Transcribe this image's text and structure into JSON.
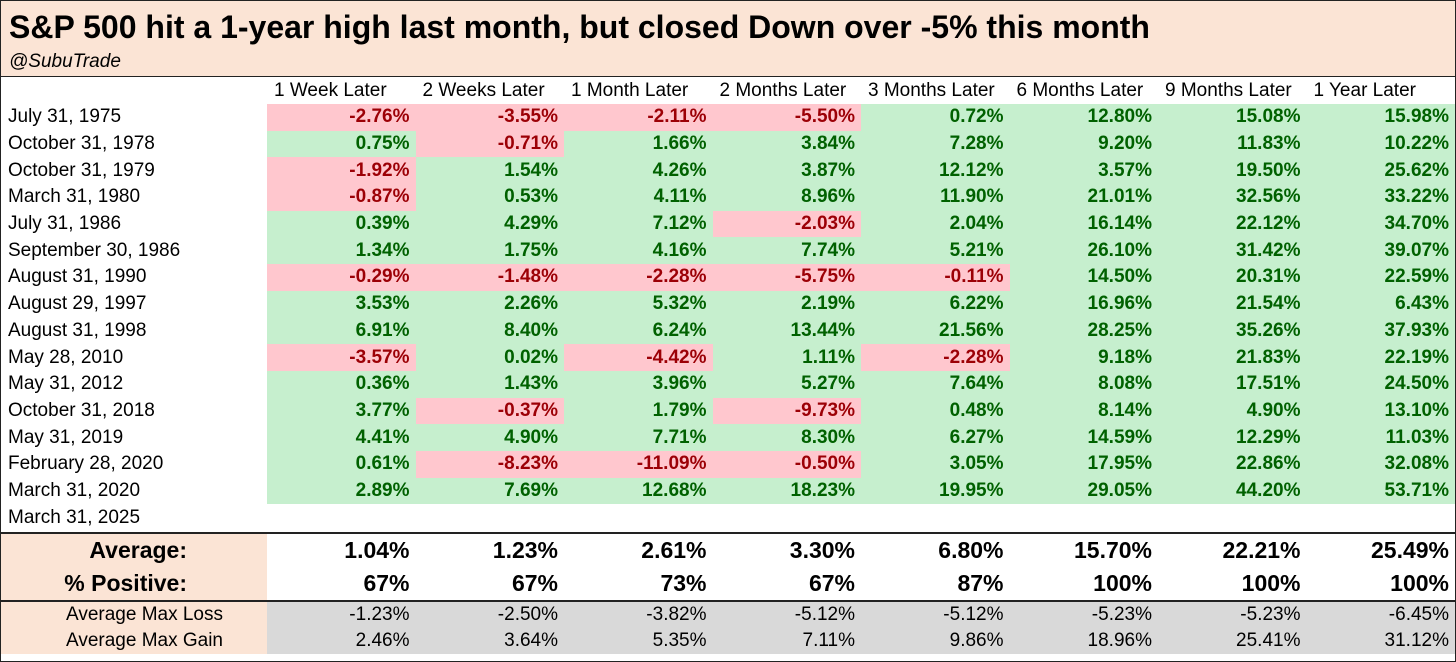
{
  "chart_data": {
    "type": "table",
    "title": "S&P 500 hit a 1-year high last month, but closed Down over -5% this month",
    "subtitle": "@SubuTrade",
    "columns": [
      "1 Week Later",
      "2 Weeks Later",
      "1 Month Later",
      "2 Months Later",
      "3 Months Later",
      "6 Months Later",
      "9 Months Later",
      "1 Year Later"
    ],
    "rows": [
      {
        "date": "July 31, 1975",
        "values": [
          "-2.76%",
          "-3.55%",
          "-2.11%",
          "-5.50%",
          "0.72%",
          "12.80%",
          "15.08%",
          "15.98%"
        ]
      },
      {
        "date": "October 31, 1978",
        "values": [
          "0.75%",
          "-0.71%",
          "1.66%",
          "3.84%",
          "7.28%",
          "9.20%",
          "11.83%",
          "10.22%"
        ]
      },
      {
        "date": "October 31, 1979",
        "values": [
          "-1.92%",
          "1.54%",
          "4.26%",
          "3.87%",
          "12.12%",
          "3.57%",
          "19.50%",
          "25.62%"
        ]
      },
      {
        "date": "March 31, 1980",
        "values": [
          "-0.87%",
          "0.53%",
          "4.11%",
          "8.96%",
          "11.90%",
          "21.01%",
          "32.56%",
          "33.22%"
        ]
      },
      {
        "date": "July 31, 1986",
        "values": [
          "0.39%",
          "4.29%",
          "7.12%",
          "-2.03%",
          "2.04%",
          "16.14%",
          "22.12%",
          "34.70%"
        ]
      },
      {
        "date": "September 30, 1986",
        "values": [
          "1.34%",
          "1.75%",
          "4.16%",
          "7.74%",
          "5.21%",
          "26.10%",
          "31.42%",
          "39.07%"
        ]
      },
      {
        "date": "August 31, 1990",
        "values": [
          "-0.29%",
          "-1.48%",
          "-2.28%",
          "-5.75%",
          "-0.11%",
          "14.50%",
          "20.31%",
          "22.59%"
        ]
      },
      {
        "date": "August 29, 1997",
        "values": [
          "3.53%",
          "2.26%",
          "5.32%",
          "2.19%",
          "6.22%",
          "16.96%",
          "21.54%",
          "6.43%"
        ]
      },
      {
        "date": "August 31, 1998",
        "values": [
          "6.91%",
          "8.40%",
          "6.24%",
          "13.44%",
          "21.56%",
          "28.25%",
          "35.26%",
          "37.93%"
        ]
      },
      {
        "date": "May 28, 2010",
        "values": [
          "-3.57%",
          "0.02%",
          "-4.42%",
          "1.11%",
          "-2.28%",
          "9.18%",
          "21.83%",
          "22.19%"
        ]
      },
      {
        "date": "May 31, 2012",
        "values": [
          "0.36%",
          "1.43%",
          "3.96%",
          "5.27%",
          "7.64%",
          "8.08%",
          "17.51%",
          "24.50%"
        ]
      },
      {
        "date": "October 31, 2018",
        "values": [
          "3.77%",
          "-0.37%",
          "1.79%",
          "-9.73%",
          "0.48%",
          "8.14%",
          "4.90%",
          "13.10%"
        ]
      },
      {
        "date": "May 31, 2019",
        "values": [
          "4.41%",
          "4.90%",
          "7.71%",
          "8.30%",
          "6.27%",
          "14.59%",
          "12.29%",
          "11.03%"
        ]
      },
      {
        "date": "February 28, 2020",
        "values": [
          "0.61%",
          "-8.23%",
          "-11.09%",
          "-0.50%",
          "3.05%",
          "17.95%",
          "22.86%",
          "32.08%"
        ]
      },
      {
        "date": "March 31, 2020",
        "values": [
          "2.89%",
          "7.69%",
          "12.68%",
          "18.23%",
          "19.95%",
          "29.05%",
          "44.20%",
          "53.71%"
        ]
      },
      {
        "date": "March 31, 2025",
        "values": [
          "",
          "",
          "",
          "",
          "",
          "",
          "",
          ""
        ]
      }
    ],
    "summary": [
      {
        "label": "Average:",
        "values": [
          "1.04%",
          "1.23%",
          "2.61%",
          "3.30%",
          "6.80%",
          "15.70%",
          "22.21%",
          "25.49%"
        ]
      },
      {
        "label": "% Positive:",
        "values": [
          "67%",
          "67%",
          "73%",
          "67%",
          "87%",
          "100%",
          "100%",
          "100%"
        ]
      }
    ],
    "max_stats": [
      {
        "label": "Average Max Loss",
        "values": [
          "-1.23%",
          "-2.50%",
          "-3.82%",
          "-5.12%",
          "-5.12%",
          "-5.23%",
          "-5.23%",
          "-6.45%"
        ]
      },
      {
        "label": "Average Max Gain",
        "values": [
          "2.46%",
          "3.64%",
          "5.35%",
          "7.11%",
          "9.86%",
          "18.96%",
          "25.41%",
          "31.12%"
        ]
      }
    ],
    "colors": {
      "header_bg": "#fbe4d5",
      "positive_bg": "#c6efce",
      "positive_text": "#006100",
      "negative_bg": "#ffc7ce",
      "negative_text": "#9c0006",
      "stats_bg": "#d9d9d9"
    }
  }
}
